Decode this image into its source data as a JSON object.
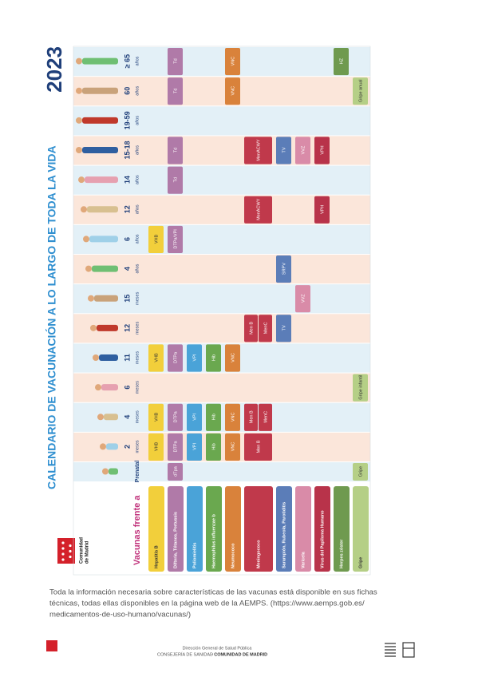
{
  "calendar": {
    "title": "CALENDARIO DE VACUNACIÓN A LO LARGO DE TODA LA VIDA",
    "year": "2023",
    "rows_heading": "Vacunas frente a",
    "logo_text": [
      "Comunidad",
      "de Madrid"
    ],
    "columns": [
      {
        "label": "Prenatal"
      },
      {
        "label": "2",
        "unit": "meses"
      },
      {
        "label": "4",
        "unit": "meses"
      },
      {
        "label": "6",
        "unit": "meses"
      },
      {
        "label": "11",
        "unit": "meses"
      },
      {
        "label": "12",
        "unit": "meses"
      },
      {
        "label": "15",
        "unit": "meses"
      },
      {
        "label": "4",
        "unit": "años"
      },
      {
        "label": "6",
        "unit": "años"
      },
      {
        "label": "12",
        "unit": "años"
      },
      {
        "label": "14",
        "unit": "años"
      },
      {
        "label": "15-18",
        "unit": "años"
      },
      {
        "label": "19-59",
        "unit": "años"
      },
      {
        "label": "60",
        "unit": "años"
      },
      {
        "label": "≥ 65",
        "unit": "años"
      }
    ],
    "rows": [
      {
        "name": "Hepatitis B",
        "color": "#f2cf3b",
        "cells": [
          {
            "col": 1,
            "label": "VHB"
          },
          {
            "col": 2,
            "label": "VHB"
          },
          {
            "col": 4,
            "label": "VHB"
          },
          {
            "col": 8,
            "label": "VHB"
          }
        ]
      },
      {
        "name": "Difteria, Tétanos, Pertussis",
        "color": "#b07aa8",
        "cells": [
          {
            "col": 0,
            "label": "dTpa"
          },
          {
            "col": 1,
            "label": "DTPa"
          },
          {
            "col": 2,
            "label": "DTPa"
          },
          {
            "col": 4,
            "label": "DTPa"
          },
          {
            "col": 8,
            "label": "DTPa/VPI"
          },
          {
            "col": 10,
            "label": "Td"
          },
          {
            "col": 11,
            "label": "Td"
          },
          {
            "col": 13,
            "label": "Td"
          },
          {
            "col": 14,
            "label": "Td"
          }
        ]
      },
      {
        "name": "Poliomielitis",
        "color": "#4aa3d8",
        "cells": [
          {
            "col": 1,
            "label": "VPI"
          },
          {
            "col": 2,
            "label": "VPI"
          },
          {
            "col": 4,
            "label": "VPI"
          }
        ]
      },
      {
        "name": "Haemophilus influenzae b",
        "color": "#6aa84f",
        "cells": [
          {
            "col": 1,
            "label": "Hib"
          },
          {
            "col": 2,
            "label": "Hib"
          },
          {
            "col": 4,
            "label": "Hib"
          }
        ]
      },
      {
        "name": "Neumococo",
        "color": "#d9823b",
        "cells": [
          {
            "col": 1,
            "label": "VNC"
          },
          {
            "col": 2,
            "label": "VNC"
          },
          {
            "col": 4,
            "label": "VNC"
          },
          {
            "col": 13,
            "label": "VNC"
          },
          {
            "col": 14,
            "label": "VNC"
          }
        ]
      },
      {
        "name": "Meningococo",
        "color": "#c0394b",
        "cells": [
          {
            "col": 1,
            "label": "Men B"
          },
          {
            "col": 2,
            "label": "Men B"
          },
          {
            "col": 2,
            "label": "MenC"
          },
          {
            "col": 5,
            "label": "Men B"
          },
          {
            "col": 5,
            "label": "MenC"
          },
          {
            "col": 9,
            "label": "MenACWY"
          },
          {
            "col": 11,
            "label": "MenACWY"
          }
        ]
      },
      {
        "name": "Sarampión, Rubeola, Parotiditis",
        "color": "#5b7db8",
        "cells": [
          {
            "col": 5,
            "label": "TV"
          },
          {
            "col": 7,
            "label": "SRPV"
          },
          {
            "col": 11,
            "label": "TV"
          }
        ]
      },
      {
        "name": "Varicela",
        "color": "#d98ba8",
        "cells": [
          {
            "col": 6,
            "label": "VVZ"
          },
          {
            "col": 11,
            "label": "VVZ"
          }
        ]
      },
      {
        "name": "Virus del Papiloma Humano",
        "color": "#b8334a",
        "cells": [
          {
            "col": 9,
            "label": "VPH"
          },
          {
            "col": 11,
            "label": "VPH"
          }
        ]
      },
      {
        "name": "Herpes zóster",
        "color": "#6f9a4f",
        "cells": [
          {
            "col": 14,
            "label": "HZ"
          }
        ]
      },
      {
        "name": "Gripe",
        "color": "#b5cf86",
        "cells": [
          {
            "col": 0,
            "label": "Gripe"
          },
          {
            "col": 3,
            "label": "Gripe infantil"
          },
          {
            "col": 13,
            "label": "Gripe anual"
          }
        ]
      }
    ]
  },
  "footer": {
    "lines": [
      "Toda la información necesaria sobre características de las vacunas está disponible en sus fichas",
      "técnicas, todas ellas disponibles en la página web de la AEMPS. (https://www.aemps.gob.es/",
      "medicamentos-de-uso-humano/vacunas/)"
    ],
    "org": "Dirección General de Salud Pública",
    "dept": "CONSEJERÍA DE SANIDAD",
    "community": "· COMUNIDAD DE MADRID"
  }
}
